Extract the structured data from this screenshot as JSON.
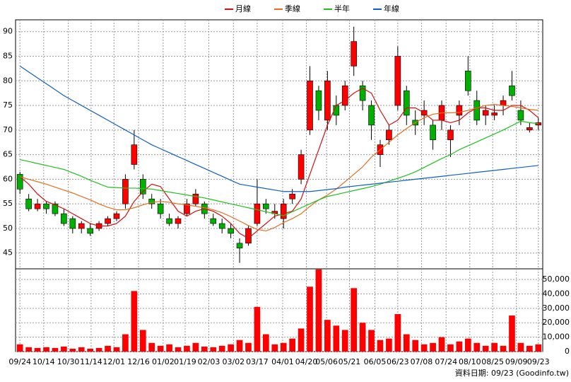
{
  "chart_data": [
    {
      "type": "candlestick",
      "up_color": "#ff0000",
      "down_color": "#00b000",
      "open": [
        61,
        56,
        54,
        55,
        55,
        53,
        52,
        50,
        50,
        50,
        51,
        52,
        55,
        63,
        60,
        56,
        55,
        52,
        51,
        53,
        55,
        55,
        52,
        51,
        50,
        47,
        47,
        51,
        55,
        53,
        52,
        56,
        60,
        70,
        78,
        72,
        75,
        75,
        83,
        79,
        75,
        65,
        68,
        75,
        78,
        72,
        73,
        71,
        72,
        68,
        73,
        82,
        76,
        73,
        73,
        75,
        79,
        74,
        70,
        71
      ],
      "high": [
        61.5,
        57,
        56,
        55.5,
        55.5,
        54,
        52.5,
        51.5,
        51,
        51.5,
        52.5,
        53.5,
        61,
        70,
        61,
        57,
        56,
        53,
        52.5,
        56,
        58,
        55.5,
        53,
        52,
        51,
        48,
        50.5,
        60,
        56,
        55,
        56,
        58,
        66,
        83,
        79,
        82,
        77,
        80,
        91,
        80,
        76,
        68,
        71,
        87,
        79,
        74,
        76,
        72,
        76,
        71,
        76,
        85,
        78,
        75,
        75,
        77,
        82,
        76,
        71.5,
        72.5
      ],
      "low": [
        57,
        53.5,
        53.5,
        53,
        52.5,
        50.5,
        49,
        49,
        48.5,
        49.5,
        50.5,
        51.5,
        54,
        62,
        56,
        54,
        52,
        50.5,
        50,
        52.5,
        54.5,
        52,
        50.5,
        49,
        48,
        43,
        46.5,
        50.5,
        53,
        52,
        50,
        55,
        59,
        69,
        72,
        70,
        71,
        74,
        81,
        74,
        68,
        62.5,
        67,
        74,
        71,
        69,
        71,
        66,
        70,
        64.5,
        71,
        77,
        71,
        71,
        72,
        73,
        76,
        71,
        69.5,
        70
      ],
      "close": [
        58,
        54,
        55,
        54,
        53,
        51,
        50,
        51,
        49,
        51,
        52,
        53,
        60,
        67,
        57,
        55,
        53,
        51,
        52,
        55,
        57,
        53,
        51,
        50,
        49,
        46,
        50,
        55,
        54,
        53.5,
        55,
        57,
        65,
        80,
        74,
        80,
        73,
        79,
        88,
        76,
        71,
        67,
        70,
        85,
        73,
        71,
        74,
        68,
        75,
        70,
        75,
        78,
        72,
        74,
        73.5,
        76,
        77,
        72,
        70.5,
        71.5
      ],
      "ylim": [
        41.8,
        92.4
      ],
      "yticks": [
        45,
        50,
        55,
        60,
        65,
        70,
        75,
        80,
        85,
        90
      ],
      "grid": true,
      "series": [
        {
          "name": "月線",
          "color": "#d01010",
          "values": [
            60.5,
            59,
            57,
            55.5,
            54.8,
            54,
            53,
            52,
            51,
            50.5,
            50.5,
            51,
            52.5,
            55.5,
            57.5,
            59,
            58.5,
            56,
            53.5,
            52.5,
            53.5,
            54,
            53.5,
            52.5,
            51,
            49,
            48,
            49.5,
            51,
            52.5,
            53,
            53.5,
            56,
            61,
            66,
            71,
            75,
            76,
            77.5,
            78.5,
            77.5,
            74,
            71,
            72,
            74.5,
            74.5,
            73.5,
            72,
            72,
            71.5,
            72,
            73.5,
            74.5,
            74.5,
            74,
            74,
            75,
            75,
            74,
            72.5
          ]
        },
        {
          "name": "季線",
          "color": "#e07020",
          "values": [
            60.5,
            60,
            59.5,
            59,
            58.4,
            57.8,
            57.2,
            56.5,
            55.8,
            55,
            54.3,
            53.8,
            53.8,
            54.2,
            54.8,
            55.3,
            55.5,
            55.3,
            55,
            54.8,
            54.5,
            54.2,
            53.8,
            53.2,
            52.4,
            51.5,
            50.6,
            49.8,
            49.5,
            50.2,
            51.2,
            52,
            53,
            54.5,
            55.8,
            56.8,
            58,
            59.5,
            61,
            62.5,
            64.5,
            66,
            67.5,
            69,
            70.3,
            71.5,
            72.5,
            73.2,
            73.5,
            73.5,
            73.6,
            74,
            74.5,
            75,
            75.2,
            75,
            74.8,
            74.5,
            74.2,
            74
          ]
        },
        {
          "name": "半年",
          "color": "#20c020",
          "values": [
            64,
            63.6,
            63.2,
            62.8,
            62.4,
            62,
            61.3,
            60.6,
            59.8,
            59.1,
            58.4,
            58.3,
            58.2,
            58.2,
            58.1,
            58,
            57.7,
            57.4,
            57.1,
            56.8,
            56.5,
            56.2,
            55.8,
            55.4,
            55,
            54.6,
            54.2,
            53.8,
            53.4,
            53,
            52.6,
            53.4,
            54.2,
            55,
            55.8,
            56.5,
            56.9,
            57.3,
            57.7,
            58.1,
            58.5,
            59,
            59.6,
            60.2,
            60.8,
            61.5,
            62.4,
            63.3,
            64.2,
            65,
            66,
            66.8,
            67.6,
            68.4,
            69.2,
            70,
            70.9,
            71.8,
            71.5,
            71.3
          ]
        },
        {
          "name": "年線",
          "color": "#1060c0",
          "values": [
            83,
            81.8,
            80.6,
            79.4,
            78.2,
            77,
            76,
            75,
            74,
            73,
            72,
            71,
            70,
            69,
            68,
            67,
            66.2,
            65.4,
            64.6,
            63.8,
            63,
            62.2,
            61.4,
            60.6,
            59.8,
            59,
            58.7,
            58.4,
            58.1,
            57.8,
            57.5,
            57.5,
            57.5,
            57.5,
            57.7,
            57.9,
            58.1,
            58.4,
            58.6,
            58.8,
            59,
            59.2,
            59.4,
            59.6,
            59.8,
            60,
            60.2,
            60.4,
            60.6,
            60.8,
            61,
            61.2,
            61.4,
            61.6,
            61.8,
            62,
            62.2,
            62.4,
            62.6,
            62.8
          ]
        }
      ]
    },
    {
      "type": "bar",
      "color": "#ff0000",
      "values": [
        5000,
        3000,
        2500,
        3000,
        2500,
        3500,
        2000,
        3000,
        2000,
        2500,
        4000,
        3000,
        12000,
        42000,
        15000,
        6000,
        4000,
        5000,
        3000,
        4000,
        6000,
        3500,
        3000,
        4000,
        5000,
        8000,
        6000,
        31000,
        12000,
        5000,
        6000,
        9000,
        16000,
        45000,
        57000,
        22000,
        18000,
        15000,
        44000,
        20000,
        15000,
        8000,
        9000,
        26000,
        12000,
        8000,
        5000,
        6000,
        10000,
        5000,
        7000,
        9000,
        6000,
        4000,
        6000,
        4000,
        25000,
        6000,
        4000,
        5000
      ],
      "ylim": [
        0,
        57400
      ],
      "yticks": [
        0,
        {
          "value": 10000,
          "label": "10,000"
        },
        {
          "value": 20000,
          "label": "20,000"
        },
        {
          "value": 30000,
          "label": "30,000"
        },
        {
          "value": 40000,
          "label": "40,000"
        },
        {
          "value": 50000,
          "label": "50,000"
        }
      ],
      "xlim": [
        -0.5,
        59.5
      ],
      "xticks": [
        {
          "value": 0,
          "label": "09/24"
        },
        {
          "value": 2.7,
          "label": "10/14"
        },
        {
          "value": 5.5,
          "label": "10/30"
        },
        {
          "value": 8.1,
          "label": "11/14"
        },
        {
          "value": 10.7,
          "label": "12/01"
        },
        {
          "value": 13.5,
          "label": "12/16"
        },
        {
          "value": 16.3,
          "label": "01/02"
        },
        {
          "value": 18.8,
          "label": "01/19"
        },
        {
          "value": 21.5,
          "label": "02/03"
        },
        {
          "value": 24.3,
          "label": "03/02"
        },
        {
          "value": 27,
          "label": "03/17"
        },
        {
          "value": 29.9,
          "label": "04/01"
        },
        {
          "value": 32.6,
          "label": "04/20"
        },
        {
          "value": 34.9,
          "label": "05/06"
        },
        {
          "value": 37.5,
          "label": "05/21"
        },
        {
          "value": 40.4,
          "label": "06/05"
        },
        {
          "value": 43,
          "label": "06/23"
        },
        {
          "value": 45.7,
          "label": "07/08"
        },
        {
          "value": 48.5,
          "label": "07/24"
        },
        {
          "value": 51.2,
          "label": "08/10"
        },
        {
          "value": 53.8,
          "label": "08/25"
        },
        {
          "value": 56.5,
          "label": "09/09"
        },
        {
          "value": 59,
          "label": "09/23"
        }
      ],
      "footer": "資料日期: 09/23 (Goodinfo.tw)"
    }
  ]
}
